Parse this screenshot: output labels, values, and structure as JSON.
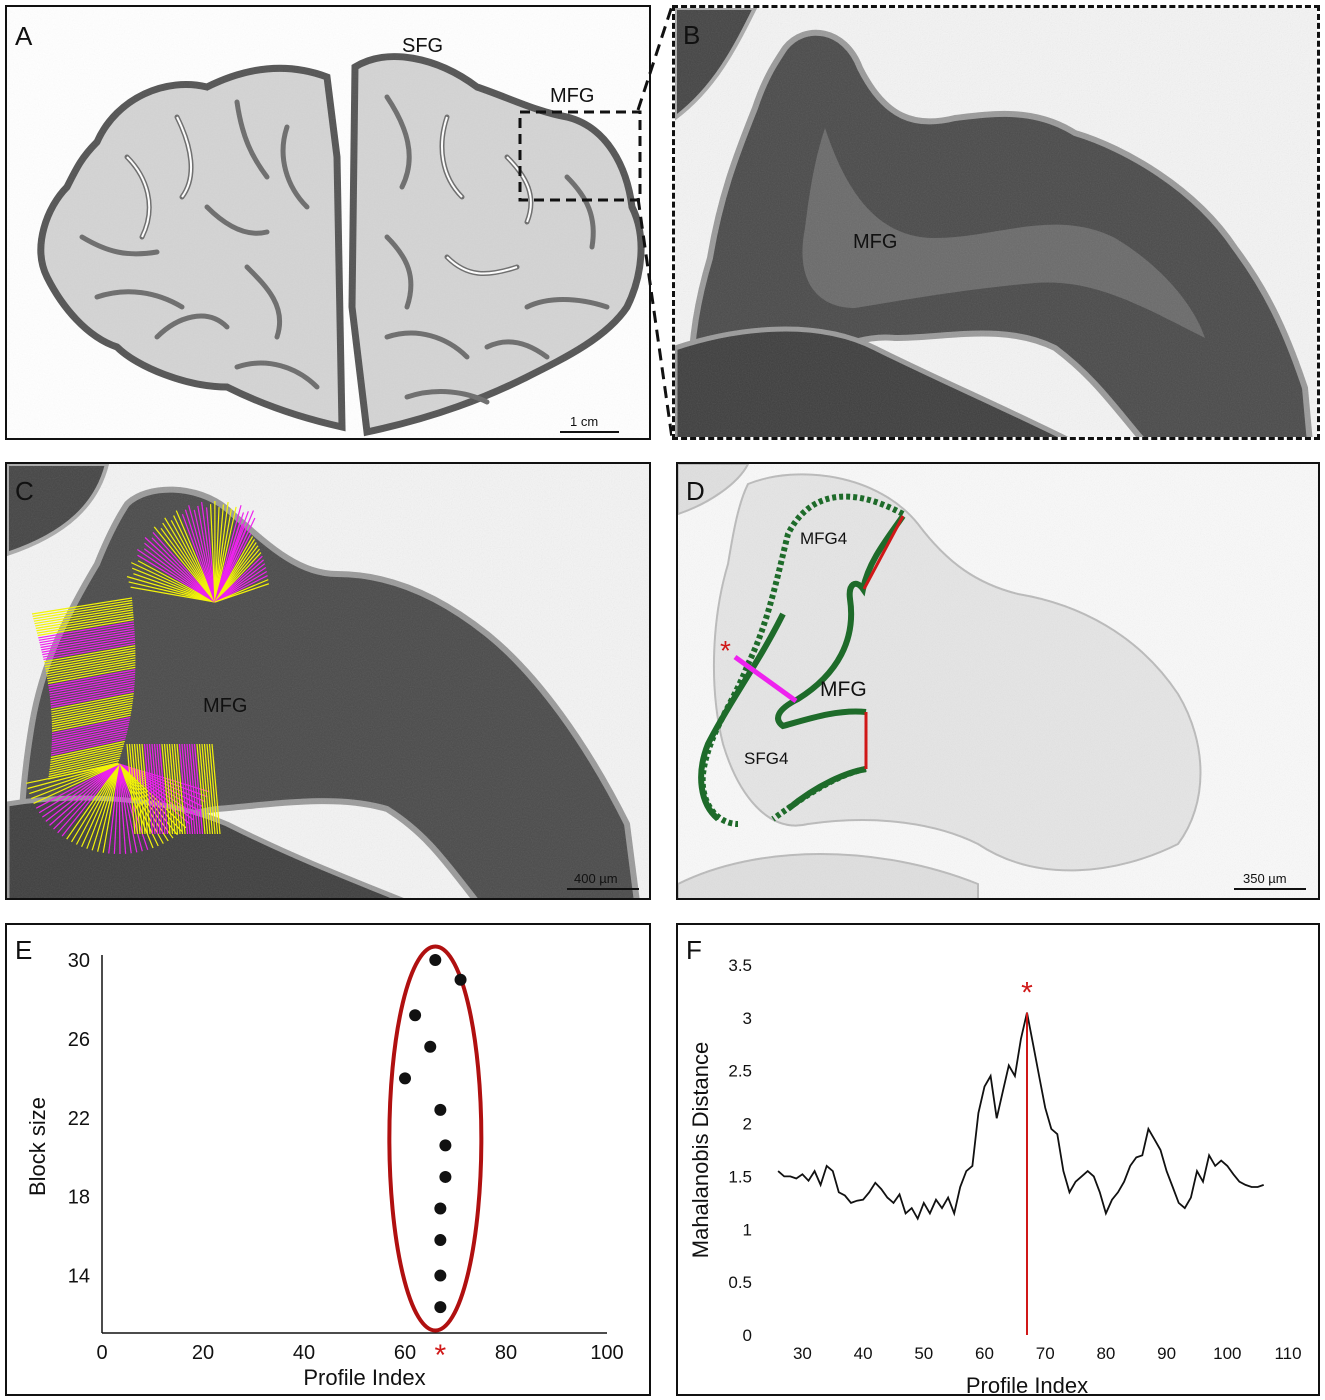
{
  "panels": {
    "A": {
      "label": "A",
      "sfg": "SFG",
      "mfg": "MFG",
      "scale": "1 cm"
    },
    "B": {
      "label": "B",
      "mfg": "MFG"
    },
    "C": {
      "label": "C",
      "mfg": "MFG",
      "scale": "400 µm"
    },
    "D": {
      "label": "D",
      "mfg4": "MFG4",
      "mfg": "MFG",
      "sfg4": "SFG4",
      "scale": "350 µm",
      "marker": "*"
    },
    "E": {
      "label": "E",
      "marker": "*"
    },
    "F": {
      "label": "F",
      "marker": "*"
    }
  },
  "colors": {
    "green": "#1e6b2a",
    "red": "#d01818",
    "magenta": "#ee22ee",
    "yellow": "#f2f20a",
    "ellipse": "#b01010",
    "tissue": "#5a5a5a",
    "bg": "#ffffff"
  },
  "chart_data": [
    {
      "type": "scatter",
      "xlabel": "Profile Index",
      "ylabel": "Block size",
      "xlim": [
        0,
        100
      ],
      "ylim": [
        12,
        30
      ],
      "xticks": [
        0,
        20,
        40,
        60,
        80,
        100
      ],
      "yticks": [
        14,
        18,
        22,
        26,
        30
      ],
      "points": [
        {
          "x": 66,
          "y": 30
        },
        {
          "x": 71,
          "y": 29
        },
        {
          "x": 62,
          "y": 27.2
        },
        {
          "x": 65,
          "y": 25.6
        },
        {
          "x": 60,
          "y": 24
        },
        {
          "x": 67,
          "y": 22.4
        },
        {
          "x": 68,
          "y": 20.6
        },
        {
          "x": 68,
          "y": 19
        },
        {
          "x": 67,
          "y": 17.4
        },
        {
          "x": 67,
          "y": 15.8
        },
        {
          "x": 67,
          "y": 14
        },
        {
          "x": 67,
          "y": 12.4
        }
      ],
      "highlight_x": 67
    },
    {
      "type": "line",
      "xlabel": "Profile Index",
      "ylabel": "Mahalanobis Distance",
      "xlim": [
        24,
        110
      ],
      "ylim": [
        0,
        3.5
      ],
      "xticks": [
        30,
        40,
        50,
        60,
        70,
        80,
        90,
        100,
        110
      ],
      "yticks": [
        0,
        0.5,
        1,
        1.5,
        2,
        2.5,
        3,
        3.5
      ],
      "series": [
        {
          "x": [
            26,
            27,
            28,
            29,
            30,
            31,
            32,
            33,
            34,
            35,
            36,
            37,
            38,
            39,
            40,
            41,
            42,
            43,
            44,
            45,
            46,
            47,
            48,
            49,
            50,
            51,
            52,
            53,
            54,
            55,
            56,
            57,
            58,
            59,
            60,
            61,
            62,
            63,
            64,
            65,
            66,
            67,
            68,
            69,
            70,
            71,
            72,
            73,
            74,
            75,
            76,
            77,
            78,
            79,
            80,
            81,
            82,
            83,
            84,
            85,
            86,
            87,
            88,
            89,
            90,
            91,
            92,
            93,
            94,
            95,
            96,
            97,
            98,
            99,
            100,
            101,
            102,
            103,
            104,
            105,
            106
          ],
          "y": [
            1.55,
            1.5,
            1.5,
            1.48,
            1.52,
            1.46,
            1.55,
            1.42,
            1.6,
            1.55,
            1.35,
            1.32,
            1.25,
            1.27,
            1.28,
            1.35,
            1.44,
            1.38,
            1.3,
            1.25,
            1.33,
            1.15,
            1.2,
            1.1,
            1.25,
            1.15,
            1.28,
            1.2,
            1.3,
            1.15,
            1.4,
            1.55,
            1.6,
            2.1,
            2.35,
            2.45,
            2.05,
            2.3,
            2.55,
            2.45,
            2.8,
            3.05,
            2.75,
            2.45,
            2.15,
            1.95,
            1.9,
            1.55,
            1.35,
            1.45,
            1.5,
            1.55,
            1.5,
            1.35,
            1.15,
            1.28,
            1.35,
            1.45,
            1.6,
            1.68,
            1.7,
            1.95,
            1.85,
            1.75,
            1.55,
            1.4,
            1.25,
            1.2,
            1.3,
            1.55,
            1.45,
            1.7,
            1.6,
            1.65,
            1.6,
            1.52,
            1.45,
            1.42,
            1.4,
            1.4,
            1.42
          ]
        }
      ],
      "highlight_x": 67
    }
  ]
}
